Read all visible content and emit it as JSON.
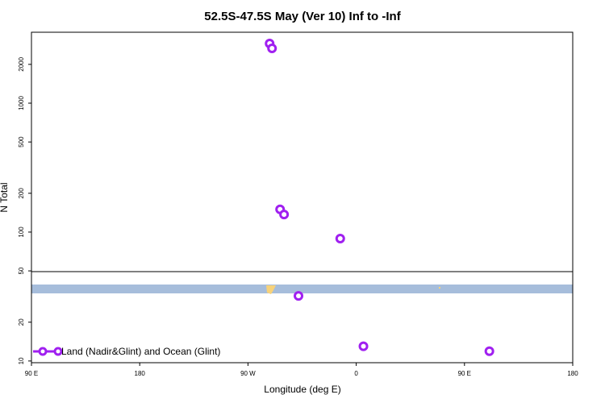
{
  "chart_data": {
    "type": "scatter",
    "title": "52.5S-47.5S May (Ver 10)   Inf to -Inf",
    "x_label": "Longitude (deg E)",
    "y_label": "N Total",
    "log_y": true,
    "xlim": [
      90,
      540
    ],
    "ylim": [
      9.7,
      3550
    ],
    "xticks": [
      {
        "value": 90,
        "label": "90 E"
      },
      {
        "value": 180,
        "label": "180"
      },
      {
        "value": 270,
        "label": "90 W"
      },
      {
        "value": 360,
        "label": "0"
      },
      {
        "value": 450,
        "label": "90 E"
      },
      {
        "value": 540,
        "label": "180"
      }
    ],
    "yticks": [
      10,
      20,
      50,
      100,
      200,
      500,
      1000,
      2000
    ],
    "legend_position": "lower left",
    "series": [
      {
        "name": "Land (Nadir&Glint) and Ocean (Glint)",
        "color": "#a020f0",
        "x": [
          288,
          290,
          296.7,
          300,
          346.7,
          312,
          366,
          470.7
        ],
        "values": [
          2900,
          2660,
          150,
          137,
          89,
          32,
          13,
          11.9
        ]
      }
    ]
  }
}
